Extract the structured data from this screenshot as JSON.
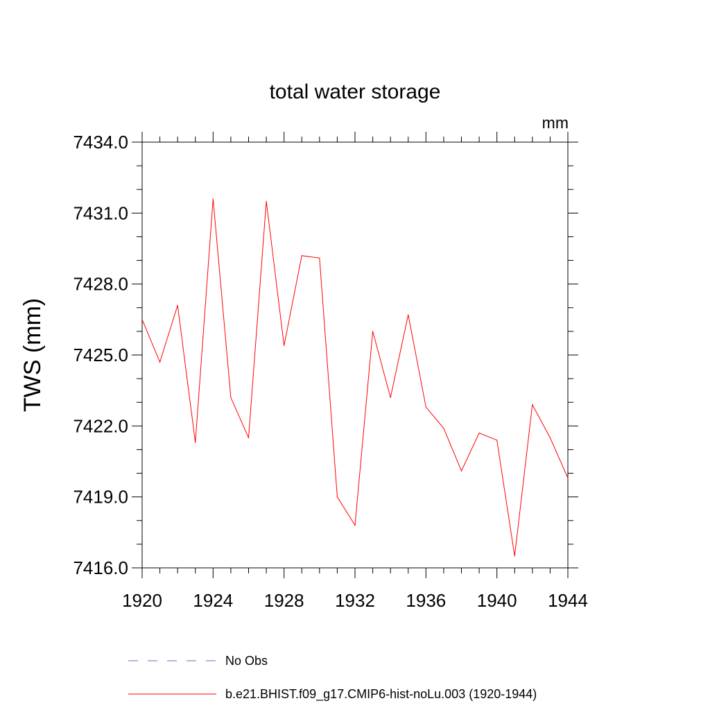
{
  "chart_data": {
    "type": "line",
    "title": "total water storage",
    "units_label": "mm",
    "ylabel": "TWS  (mm)",
    "xlabel": "",
    "xlim": [
      1920,
      1944
    ],
    "ylim": [
      7416.0,
      7434.0
    ],
    "x_ticks": [
      1920,
      1924,
      1928,
      1932,
      1936,
      1940,
      1944
    ],
    "y_ticks": [
      7416.0,
      7419.0,
      7422.0,
      7425.0,
      7428.0,
      7431.0,
      7434.0
    ],
    "x_tick_labels": [
      "1920",
      "1924",
      "1928",
      "1932",
      "1936",
      "1940",
      "1944"
    ],
    "y_tick_labels": [
      "7416.0",
      "7419.0",
      "7422.0",
      "7425.0",
      "7428.0",
      "7431.0",
      "7434.0"
    ],
    "grid": false,
    "legend_position": "bottom",
    "series": [
      {
        "name": "b.e21.BHIST.f09_g17.CMIP6-hist-noLu.003 (1920-1944)",
        "color": "#ff0000",
        "dash": "solid",
        "x": [
          1920,
          1921,
          1922,
          1923,
          1924,
          1925,
          1926,
          1927,
          1928,
          1929,
          1930,
          1931,
          1932,
          1933,
          1934,
          1935,
          1936,
          1937,
          1938,
          1939,
          1940,
          1941,
          1942,
          1943,
          1944
        ],
        "y": [
          7426.5,
          7424.7,
          7427.1,
          7421.3,
          7431.6,
          7423.2,
          7421.5,
          7431.5,
          7425.4,
          7429.2,
          7429.1,
          7419.0,
          7417.8,
          7426.0,
          7423.2,
          7426.7,
          7422.8,
          7421.9,
          7420.1,
          7421.7,
          7421.4,
          7416.5,
          7422.9,
          7421.5,
          7419.8
        ]
      }
    ],
    "legend": [
      {
        "label": "No Obs",
        "color": "#6a6ac8",
        "dash": "dashed"
      },
      {
        "label": "b.e21.BHIST.f09_g17.CMIP6-hist-noLu.003 (1920-1944)",
        "color": "#ff0000",
        "dash": "solid"
      }
    ]
  }
}
